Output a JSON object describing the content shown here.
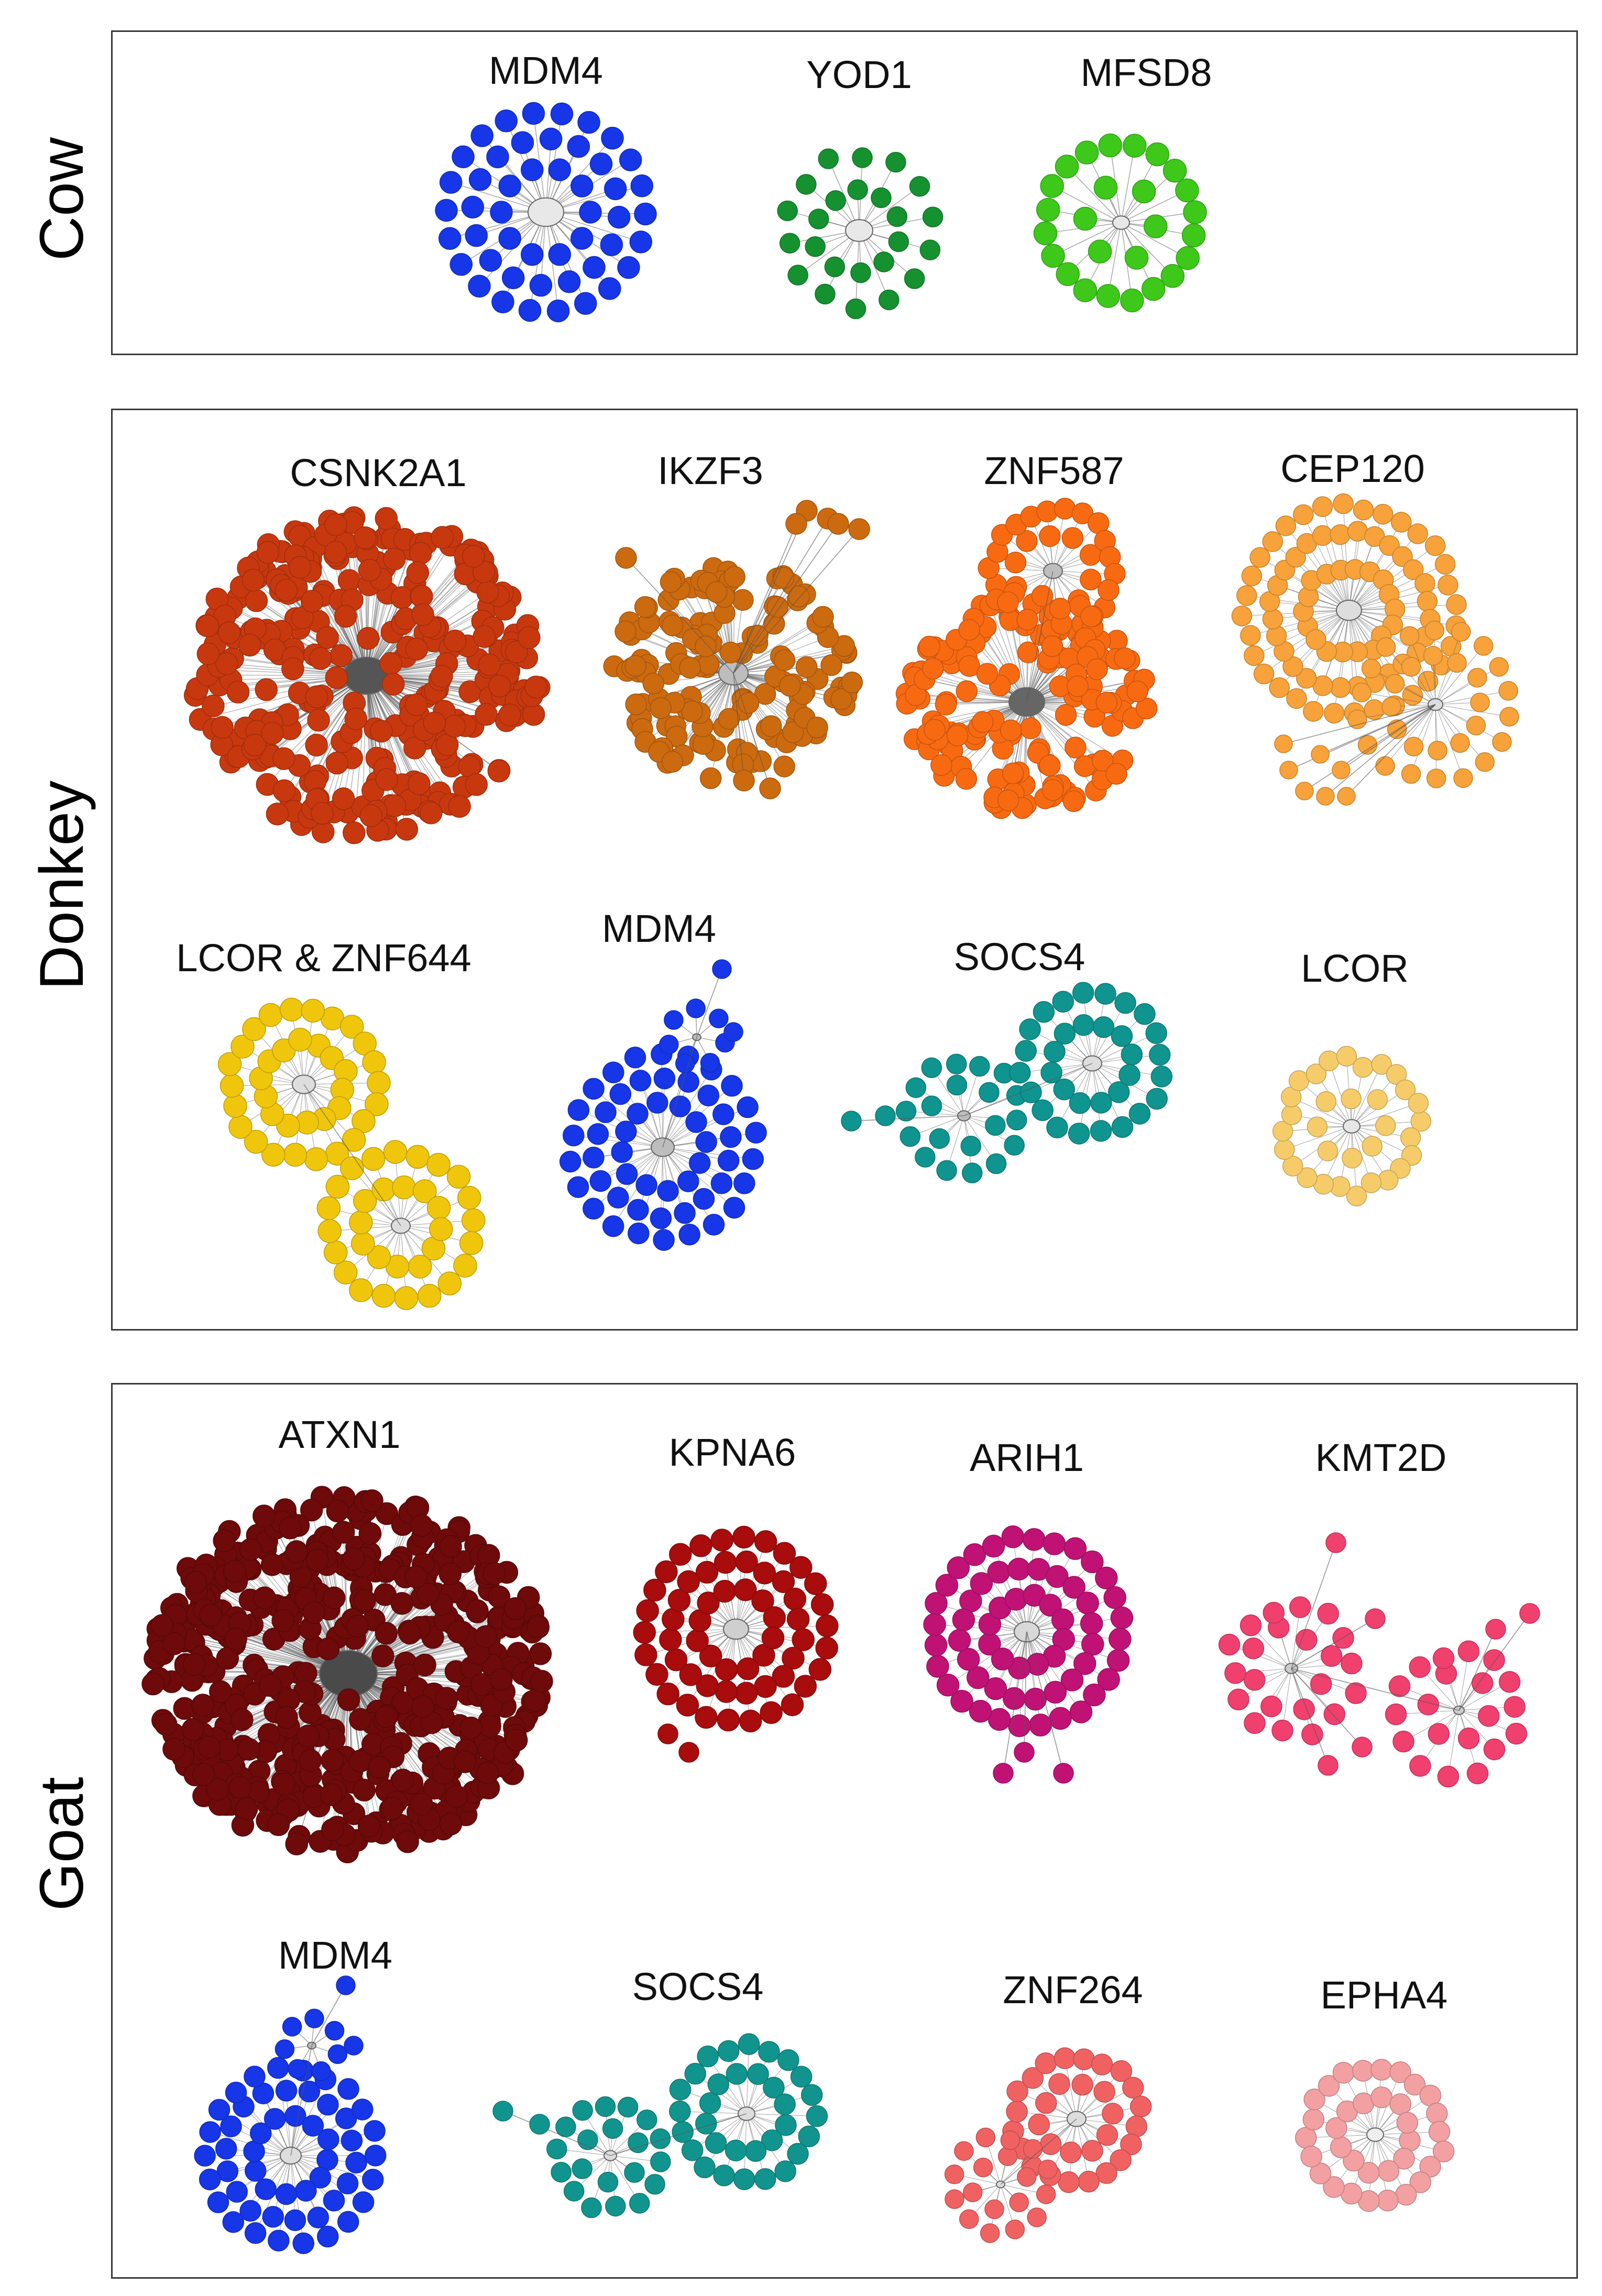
{
  "panels": [
    {
      "species": "Cow",
      "networks": [
        {
          "gene": "MDM4",
          "color": "#1636e8"
        },
        {
          "gene": "YOD1",
          "color": "#15912f"
        },
        {
          "gene": "MFSD8",
          "color": "#3dc81a"
        }
      ]
    },
    {
      "species": "Donkey",
      "networks": [
        {
          "gene": "CSNK2A1",
          "color": "#c8380f"
        },
        {
          "gene": "IKZF3",
          "color": "#cc6a10"
        },
        {
          "gene": "ZNF587",
          "color": "#f86a12"
        },
        {
          "gene": "CEP120",
          "color": "#f7a23a"
        },
        {
          "gene": "LCOR & ZNF644",
          "color": "#f0c60c"
        },
        {
          "gene": "MDM4",
          "color": "#1636e8"
        },
        {
          "gene": "SOCS4",
          "color": "#0f9490"
        },
        {
          "gene": "LCOR",
          "color": "#f6cc6a"
        }
      ]
    },
    {
      "species": "Goat",
      "networks": [
        {
          "gene": "ATXN1",
          "color": "#6e0a0a"
        },
        {
          "gene": "KPNA6",
          "color": "#a80c0c"
        },
        {
          "gene": "ARIH1",
          "color": "#c01275"
        },
        {
          "gene": "KMT2D",
          "color": "#f0406e"
        },
        {
          "gene": "MDM4",
          "color": "#1636e8"
        },
        {
          "gene": "SOCS4",
          "color": "#12948e"
        },
        {
          "gene": "ZNF264",
          "color": "#f06262"
        },
        {
          "gene": "EPHA4",
          "color": "#f2a0a2"
        }
      ]
    }
  ]
}
